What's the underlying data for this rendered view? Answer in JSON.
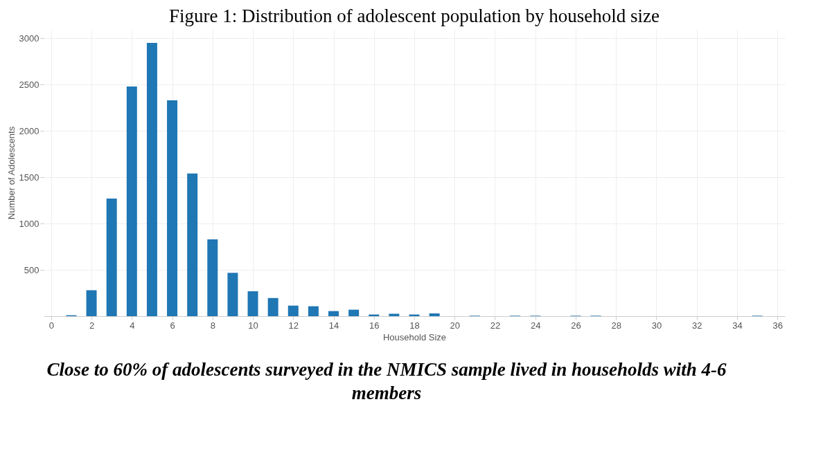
{
  "chart_data": {
    "type": "bar",
    "title": "Figure 1: Distribution of adolescent population by household size",
    "xlabel": "Household Size",
    "ylabel": "Number of Adolescents",
    "x": [
      1,
      2,
      3,
      4,
      5,
      6,
      7,
      8,
      9,
      10,
      11,
      12,
      13,
      14,
      15,
      16,
      17,
      18,
      19,
      21,
      23,
      24,
      26,
      27,
      35
    ],
    "series": [
      {
        "color": "#1f77b4",
        "values": [
          10,
          280,
          1270,
          2480,
          2950,
          2330,
          1540,
          830,
          468,
          269,
          196,
          114,
          107,
          55,
          70,
          18,
          26,
          18,
          30,
          5,
          5,
          5,
          5,
          5,
          5
        ]
      }
    ],
    "xlim": [
      -0.2,
      36.2
    ],
    "ylim": [
      0,
      3100
    ],
    "xticks": [
      0,
      2,
      4,
      6,
      8,
      10,
      12,
      14,
      16,
      18,
      20,
      22,
      24,
      26,
      28,
      30,
      32,
      34,
      36
    ],
    "yticks": [
      500,
      1000,
      1500,
      2000,
      2500,
      3000
    ],
    "grid": true,
    "annotations": [
      "Close to 60% of adolescents surveyed in the NMICS sample lived in households with 4-6 members"
    ]
  }
}
